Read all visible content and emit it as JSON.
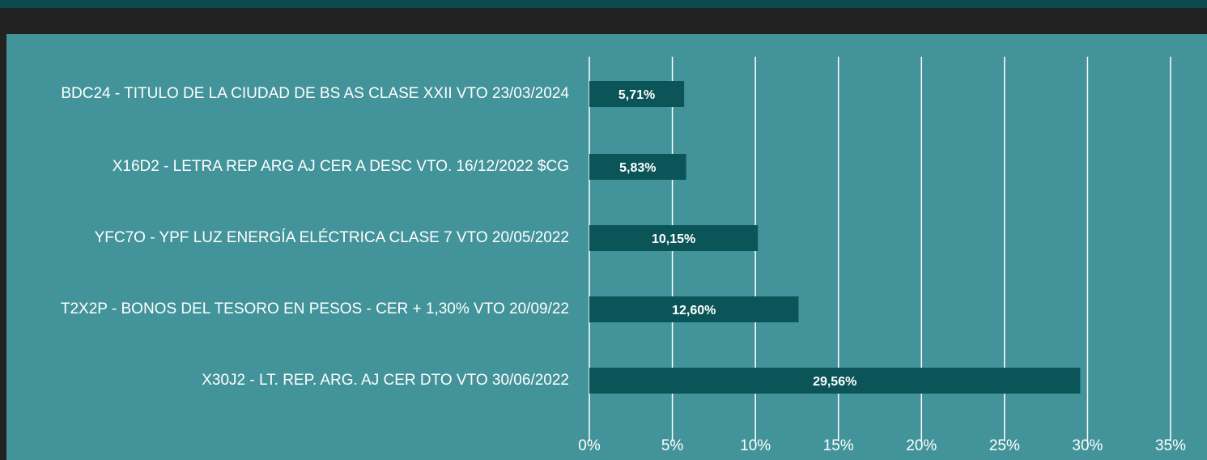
{
  "chart_data": {
    "type": "barh",
    "categories": [
      "BDC24 - TITULO DE LA CIUDAD DE BS AS CLASE XXII VTO 23/03/2024",
      "X16D2 - LETRA REP ARG AJ CER A DESC VTO. 16/12/2022 $CG",
      "YFC7O - YPF LUZ ENERGÍA ELÉCTRICA CLASE 7 VTO 20/05/2022",
      "T2X2P - BONOS DEL TESORO EN PESOS - CER + 1,30% VTO 20/09/22",
      "X30J2 - LT. REP. ARG. AJ CER DTO VTO 30/06/2022"
    ],
    "values": [
      5.71,
      5.83,
      10.15,
      12.6,
      29.56
    ],
    "value_labels": [
      "5,71%",
      "5,83%",
      "10,15%",
      "12,60%",
      "29,56%"
    ],
    "color": "#0b5558",
    "xlim": [
      0,
      35
    ],
    "xticks": [
      {
        "value": 0,
        "label": "0%"
      },
      {
        "value": 5,
        "label": "5%"
      },
      {
        "value": 10,
        "label": "10%"
      },
      {
        "value": 15,
        "label": "15%"
      },
      {
        "value": 20,
        "label": "20%"
      },
      {
        "value": 25,
        "label": "25%"
      },
      {
        "value": 30,
        "label": "30%"
      },
      {
        "value": 35,
        "label": "35%"
      }
    ],
    "grid": true
  }
}
